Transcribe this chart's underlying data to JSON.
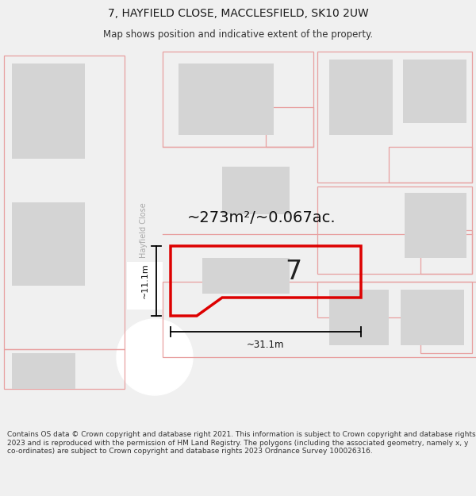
{
  "title": "7, HAYFIELD CLOSE, MACCLESFIELD, SK10 2UW",
  "subtitle": "Map shows position and indicative extent of the property.",
  "footer": "Contains OS data © Crown copyright and database right 2021. This information is subject to Crown copyright and database rights 2023 and is reproduced with the permission of HM Land Registry. The polygons (including the associated geometry, namely x, y co-ordinates) are subject to Crown copyright and database rights 2023 Ordnance Survey 100026316.",
  "area_label": "~273m²/~0.067ac.",
  "number_label": "7",
  "width_label": "~31.1m",
  "height_label": "~11.1m",
  "background_color": "#f0f0f0",
  "map_bg": "#ffffff",
  "plot_outline_color": "#dd0000",
  "building_fill": "#d4d4d4",
  "property_line_color": "#e8a0a0",
  "title_fontsize": 10,
  "subtitle_fontsize": 8.5,
  "footer_fontsize": 6.5
}
